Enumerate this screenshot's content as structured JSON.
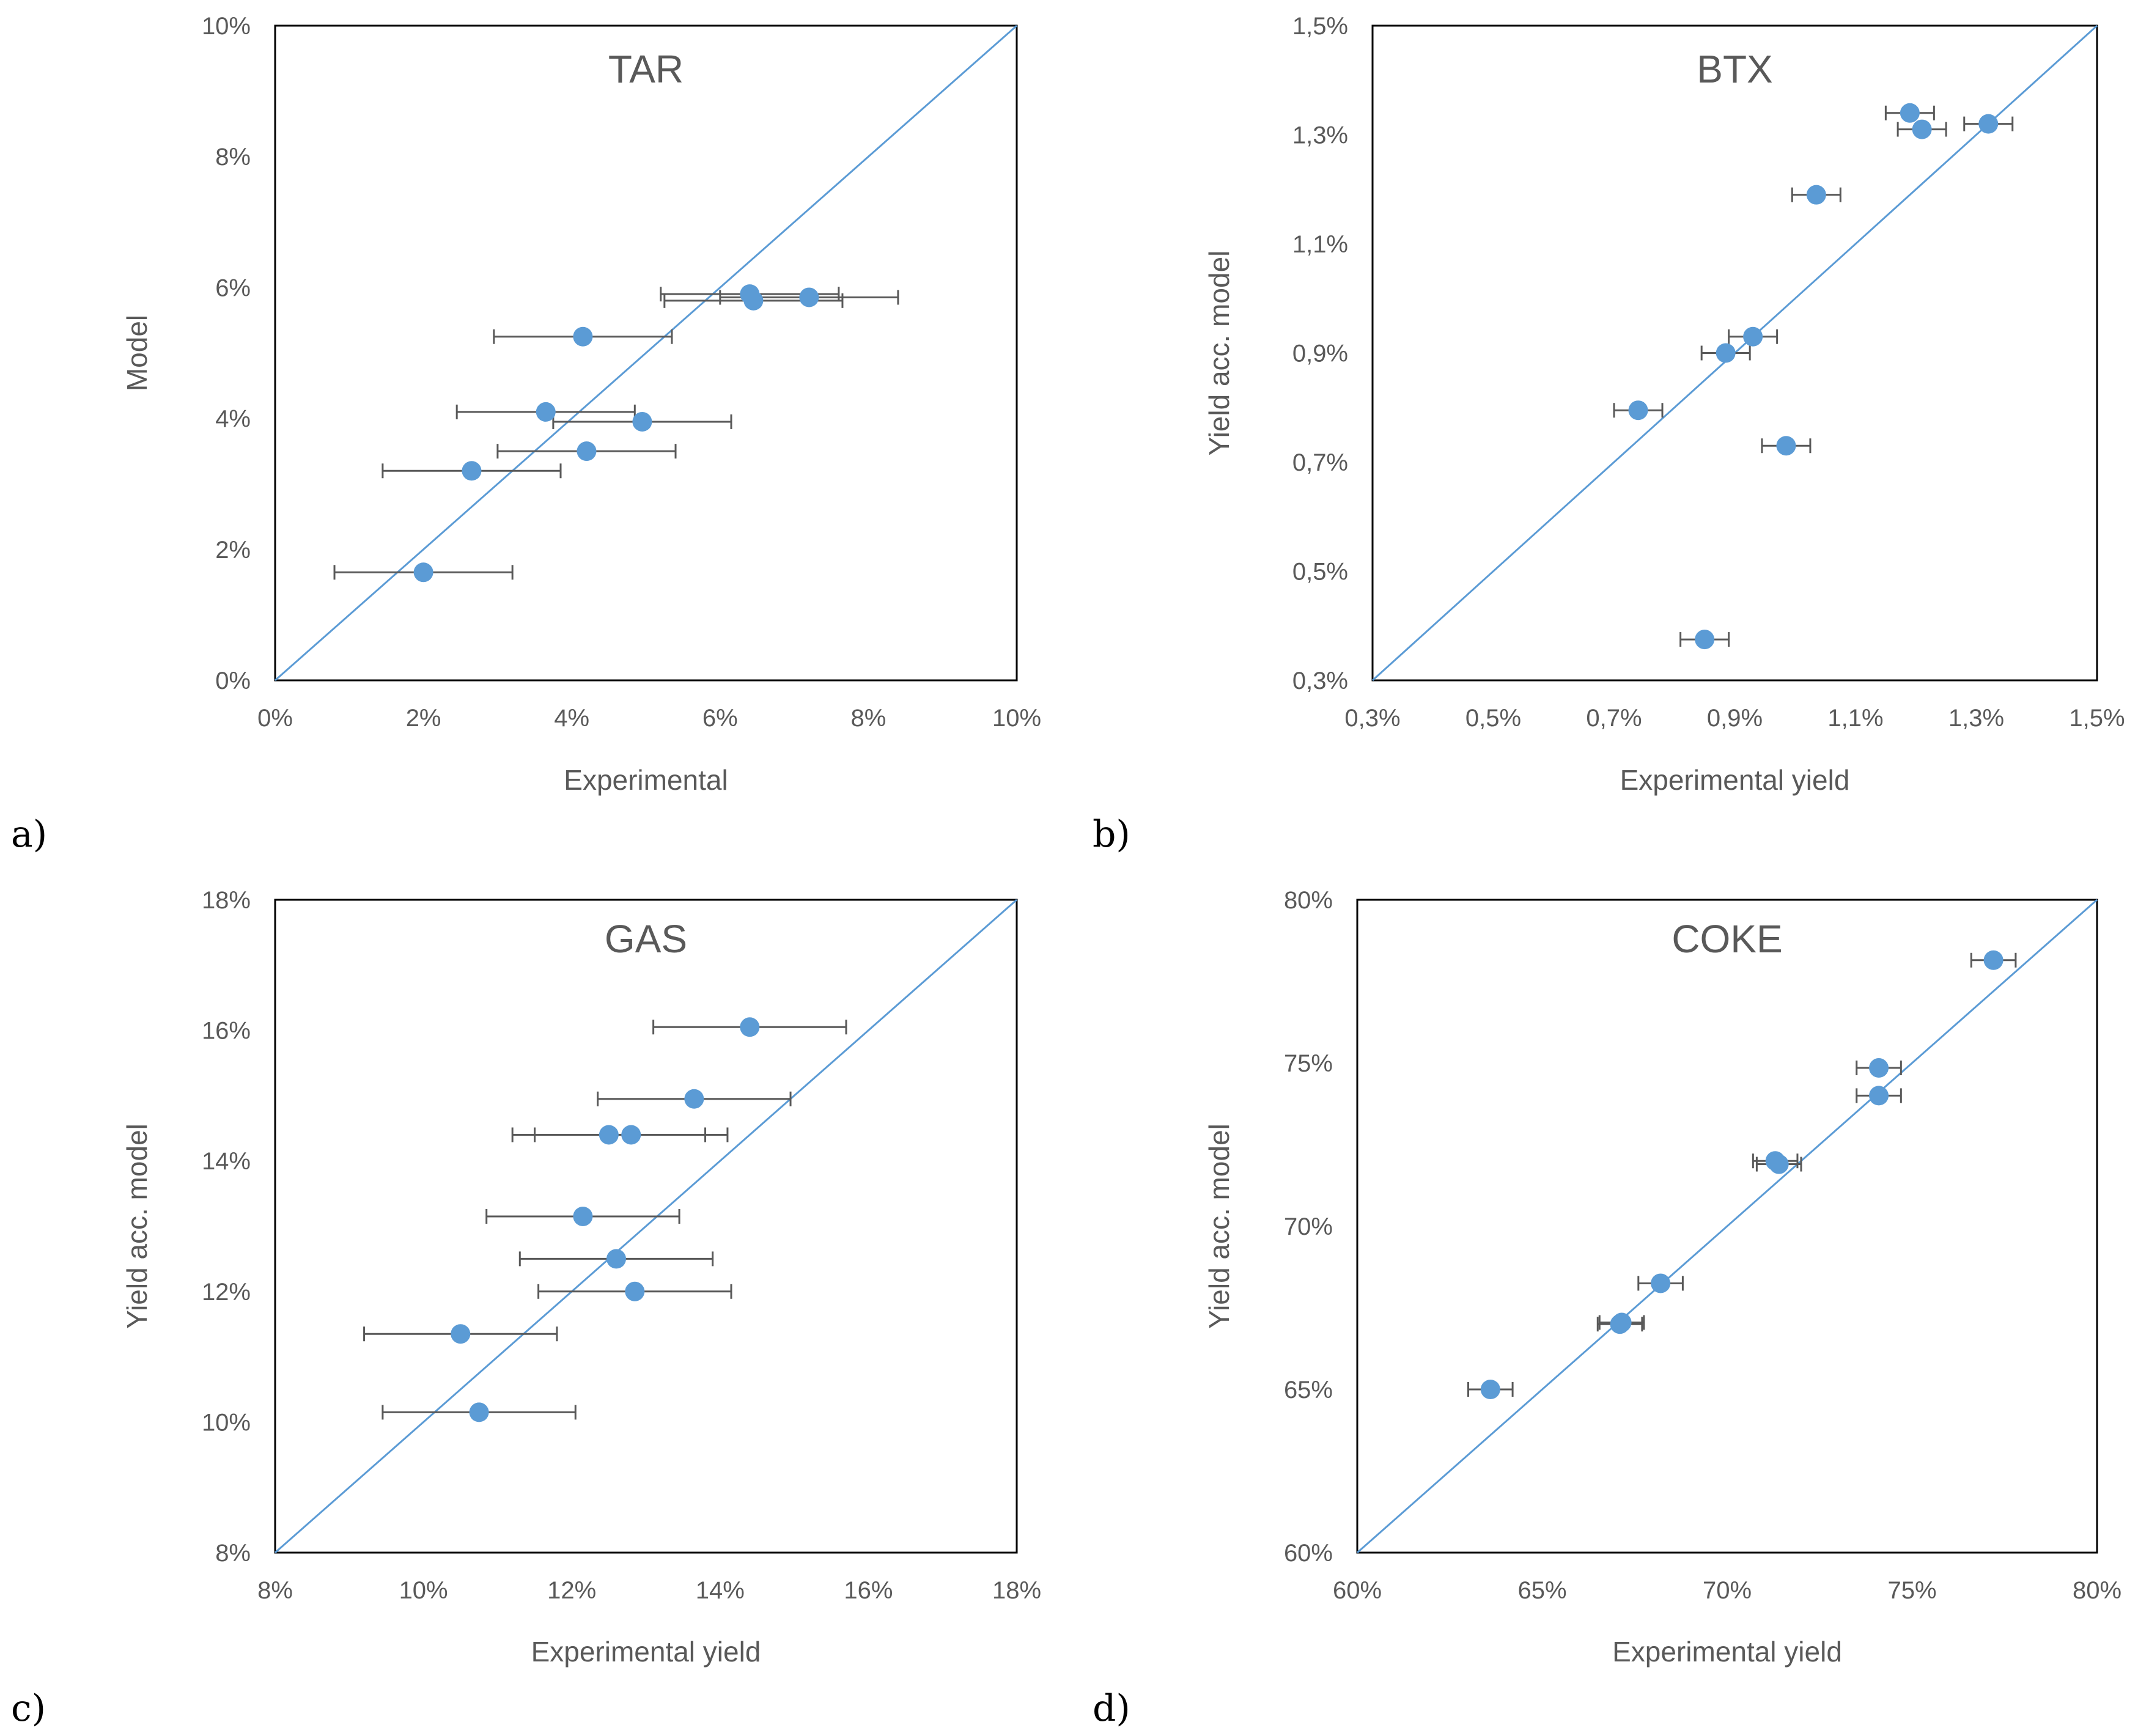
{
  "colors": {
    "marker": "#5b9bd5",
    "diagonal": "#5b9bd5",
    "errorbar": "#595959",
    "frame": "#000000",
    "text": "#595959"
  },
  "chart_data": [
    {
      "id": "a",
      "type": "scatter",
      "panel_label": "a)",
      "title": "TAR",
      "xlabel": "Experimental",
      "ylabel": "Model",
      "xlim": [
        0,
        10
      ],
      "ylim": [
        0,
        10
      ],
      "xticks": [
        "0%",
        "2%",
        "4%",
        "6%",
        "8%",
        "10%"
      ],
      "yticks": [
        "0%",
        "2%",
        "4%",
        "6%",
        "8%",
        "10%"
      ],
      "points": [
        {
          "x": 2.0,
          "y": 1.65,
          "xerr": 1.2
        },
        {
          "x": 2.65,
          "y": 3.2,
          "xerr": 1.2
        },
        {
          "x": 4.2,
          "y": 3.5,
          "xerr": 1.2
        },
        {
          "x": 3.65,
          "y": 4.1,
          "xerr": 1.2
        },
        {
          "x": 4.95,
          "y": 3.95,
          "xerr": 1.2
        },
        {
          "x": 4.15,
          "y": 5.25,
          "xerr": 1.2
        },
        {
          "x": 6.4,
          "y": 5.9,
          "xerr": 1.2
        },
        {
          "x": 6.45,
          "y": 5.8,
          "xerr": 1.2
        },
        {
          "x": 7.2,
          "y": 5.85,
          "xerr": 1.2
        }
      ]
    },
    {
      "id": "b",
      "type": "scatter",
      "panel_label": "b)",
      "title": "BTX",
      "xlabel": "Experimental yield",
      "ylabel": "Yield acc. model",
      "xlim": [
        0.3,
        1.5
      ],
      "ylim": [
        0.3,
        1.5
      ],
      "xticks": [
        "0,3%",
        "0,5%",
        "0,7%",
        "0,9%",
        "1,1%",
        "1,3%",
        "1,5%"
      ],
      "yticks": [
        "0,3%",
        "0,5%",
        "0,7%",
        "0,9%",
        "1,1%",
        "1,3%",
        "1,5%"
      ],
      "points": [
        {
          "x": 0.85,
          "y": 0.375,
          "xerr": 0.04
        },
        {
          "x": 0.74,
          "y": 0.795,
          "xerr": 0.04
        },
        {
          "x": 0.985,
          "y": 0.73,
          "xerr": 0.04
        },
        {
          "x": 0.885,
          "y": 0.9,
          "xerr": 0.04
        },
        {
          "x": 0.93,
          "y": 0.93,
          "xerr": 0.04
        },
        {
          "x": 1.035,
          "y": 1.19,
          "xerr": 0.04
        },
        {
          "x": 1.19,
          "y": 1.34,
          "xerr": 0.04
        },
        {
          "x": 1.21,
          "y": 1.31,
          "xerr": 0.04
        },
        {
          "x": 1.32,
          "y": 1.32,
          "xerr": 0.04
        }
      ]
    },
    {
      "id": "c",
      "type": "scatter",
      "panel_label": "c)",
      "title": "GAS",
      "xlabel": "Experimental yield",
      "ylabel": "Yield acc. model",
      "xlim": [
        8,
        18
      ],
      "ylim": [
        8,
        18
      ],
      "xticks": [
        "8%",
        "10%",
        "12%",
        "14%",
        "16%",
        "18%"
      ],
      "yticks": [
        "8%",
        "10%",
        "12%",
        "14%",
        "16%",
        "18%"
      ],
      "points": [
        {
          "x": 10.75,
          "y": 10.15,
          "xerr": 1.3
        },
        {
          "x": 10.5,
          "y": 11.35,
          "xerr": 1.3
        },
        {
          "x": 12.85,
          "y": 12.0,
          "xerr": 1.3
        },
        {
          "x": 12.6,
          "y": 12.5,
          "xerr": 1.3
        },
        {
          "x": 12.15,
          "y": 13.15,
          "xerr": 1.3
        },
        {
          "x": 12.5,
          "y": 14.4,
          "xerr": 1.3
        },
        {
          "x": 12.8,
          "y": 14.4,
          "xerr": 1.3
        },
        {
          "x": 13.65,
          "y": 14.95,
          "xerr": 1.3
        },
        {
          "x": 14.4,
          "y": 16.05,
          "xerr": 1.3
        }
      ]
    },
    {
      "id": "d",
      "type": "scatter",
      "panel_label": "d)",
      "title": "COKE",
      "xlabel": "Experimental yield",
      "ylabel": "Yield acc. model",
      "xlim": [
        60,
        80
      ],
      "ylim": [
        60,
        80
      ],
      "xticks": [
        "60%",
        "65%",
        "70%",
        "75%",
        "80%"
      ],
      "yticks": [
        "60%",
        "65%",
        "70%",
        "75%",
        "80%"
      ],
      "points": [
        {
          "x": 63.6,
          "y": 65.0,
          "xerr": 0.6
        },
        {
          "x": 67.1,
          "y": 67.0,
          "xerr": 0.6
        },
        {
          "x": 67.15,
          "y": 67.05,
          "xerr": 0.6
        },
        {
          "x": 68.2,
          "y": 68.25,
          "xerr": 0.6
        },
        {
          "x": 71.3,
          "y": 72.0,
          "xerr": 0.6
        },
        {
          "x": 71.4,
          "y": 71.9,
          "xerr": 0.6
        },
        {
          "x": 74.1,
          "y": 74.0,
          "xerr": 0.6
        },
        {
          "x": 74.1,
          "y": 74.85,
          "xerr": 0.6
        },
        {
          "x": 77.2,
          "y": 78.15,
          "xerr": 0.6
        }
      ]
    }
  ]
}
